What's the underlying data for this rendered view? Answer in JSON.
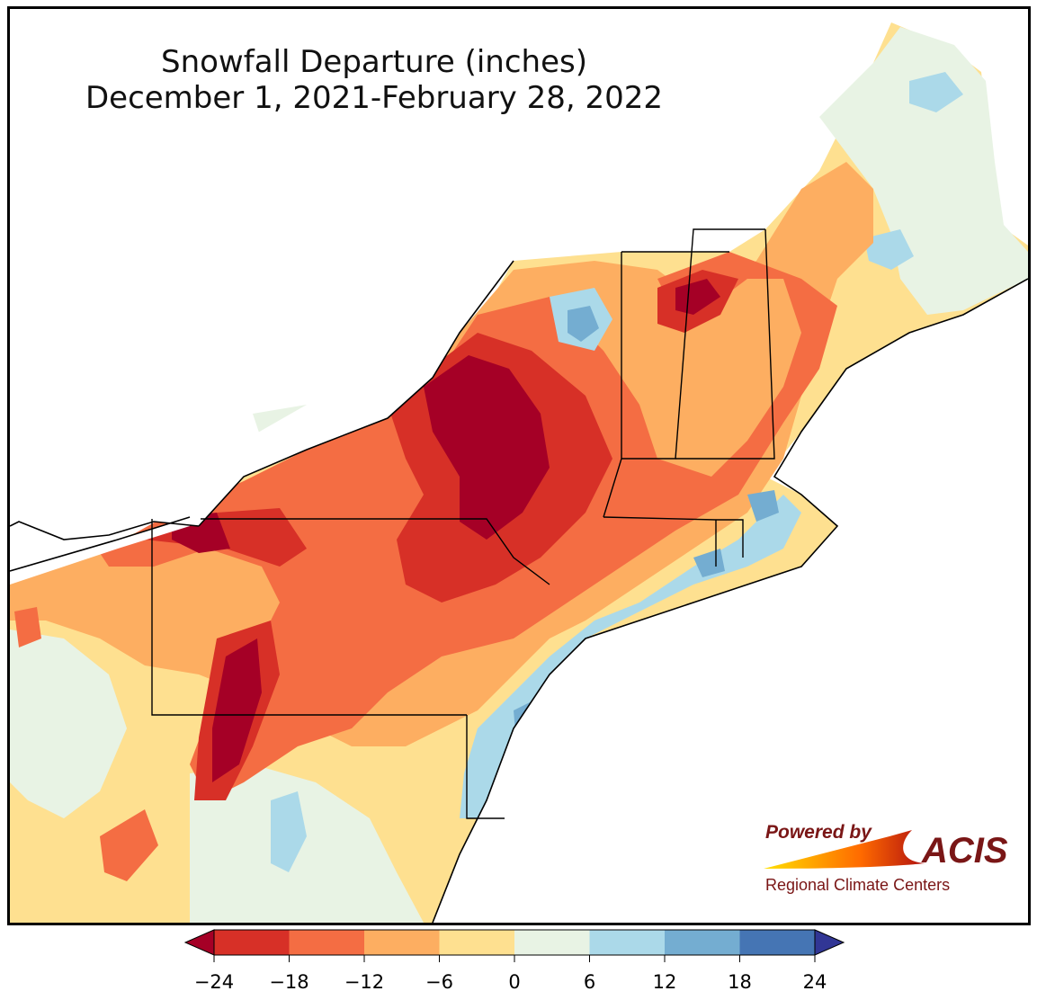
{
  "title": {
    "line1": "Snowfall Departure (inches)",
    "line2": "December 1, 2021-February 28, 2022"
  },
  "logo": {
    "powered": "Powered by",
    "name": "ACIS",
    "subtitle": "Regional Climate Centers"
  },
  "colorbar": {
    "ticks": [
      "−24",
      "−18",
      "−12",
      "−6",
      "0",
      "6",
      "12",
      "18",
      "24"
    ],
    "bins": [
      {
        "range": "<-24",
        "color": "#a50026"
      },
      {
        "range": "-24 to -18",
        "color": "#d73027"
      },
      {
        "range": "-18 to -12",
        "color": "#f46d43"
      },
      {
        "range": "-12 to -6",
        "color": "#fdae61"
      },
      {
        "range": "-6 to 0",
        "color": "#fee090"
      },
      {
        "range": "0 to 6",
        "color": "#e8f3e4"
      },
      {
        "range": "6 to 12",
        "color": "#abd9e9"
      },
      {
        "range": "12 to 18",
        "color": "#74add1"
      },
      {
        "range": "18 to 24",
        "color": "#4575b4"
      },
      {
        "range": ">24",
        "color": "#313695"
      }
    ]
  },
  "colors": {
    "water": "#ffffff",
    "border": "#000000",
    "county": "#9a9a9a"
  }
}
